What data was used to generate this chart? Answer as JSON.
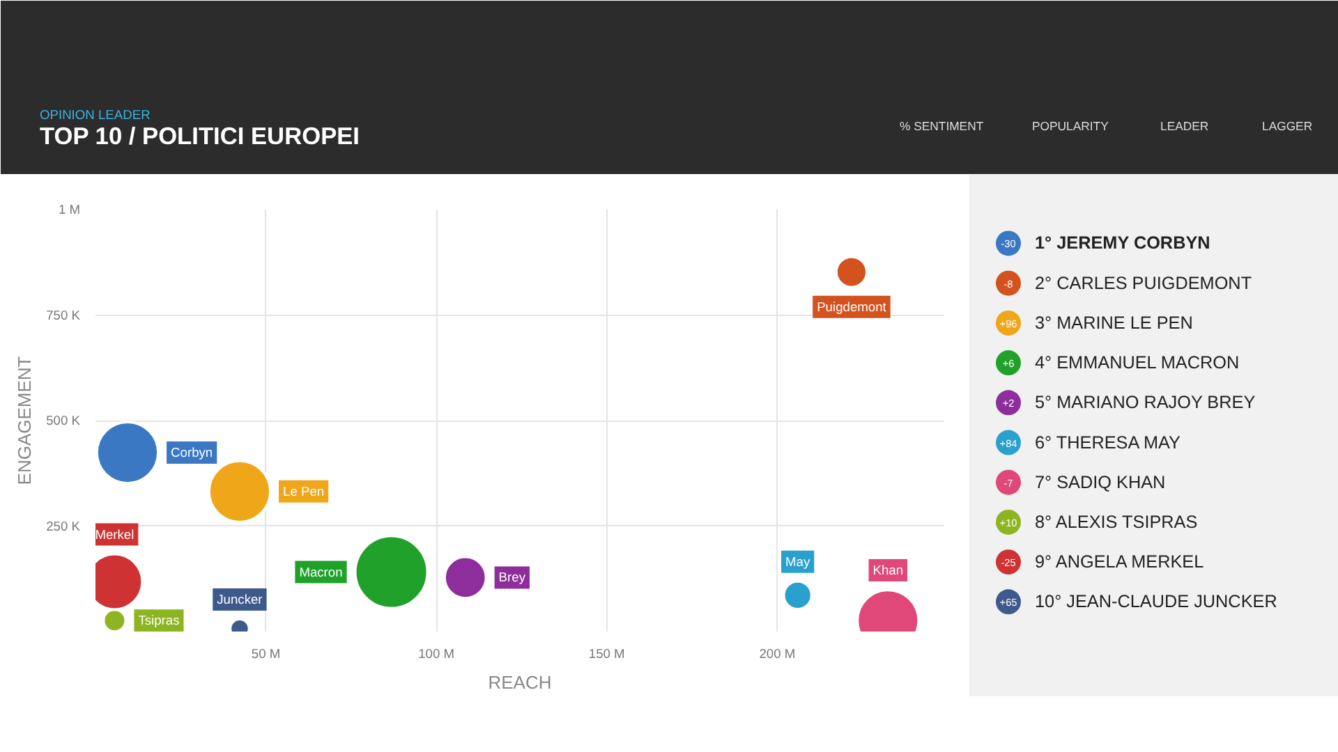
{
  "chart_data": {
    "type": "bubble",
    "title": "TOP 10 / POLITICI EUROPEI",
    "subtitle": "OPINION LEADER",
    "xlabel": "REACH",
    "ylabel": "ENGAGEMENT",
    "xlim": [
      0,
      249
    ],
    "xticks": [
      {
        "value": 50,
        "label": "50 M"
      },
      {
        "value": 100,
        "label": "100 M"
      },
      {
        "value": 150,
        "label": "150 M"
      },
      {
        "value": 200,
        "label": "200 M"
      }
    ],
    "ylim": [
      0,
      1000000
    ],
    "yticks": [
      {
        "value": 250000,
        "label": "250 K"
      },
      {
        "value": 500000,
        "label": "500 K"
      },
      {
        "value": 750000,
        "label": "750 K"
      },
      {
        "value": 1000000,
        "label": "1 M"
      }
    ],
    "grid": true,
    "series": [
      {
        "name": "Corbyn",
        "color": "#3a78c3",
        "x": [
          9.4
        ],
        "values": [
          424000
        ],
        "sizes": [
          0.72
        ]
      },
      {
        "name": "Puigdemont",
        "color": "#d4521e",
        "x": [
          221.8
        ],
        "values": [
          852000
        ],
        "sizes": [
          0.18
        ]
      },
      {
        "name": "Le Pen",
        "color": "#f0a619",
        "x": [
          42.3
        ],
        "values": [
          332000
        ],
        "sizes": [
          0.72
        ]
      },
      {
        "name": "Macron",
        "color": "#1fa12a",
        "x": [
          86.8
        ],
        "values": [
          141000
        ],
        "sizes": [
          1
        ]
      },
      {
        "name": "Brey",
        "color": "#8e2d9c",
        "x": [
          108.5
        ],
        "values": [
          128000
        ],
        "sizes": [
          0.33
        ]
      },
      {
        "name": "May",
        "color": "#2aa0cf",
        "x": [
          206
        ],
        "values": [
          86000
        ],
        "sizes": [
          0.15
        ]
      },
      {
        "name": "Khan",
        "color": "#e0487a",
        "x": [
          232.5
        ],
        "values": [
          26000
        ],
        "sizes": [
          0.72
        ]
      },
      {
        "name": "Tsipras",
        "color": "#8cb521",
        "x": [
          5.6
        ],
        "values": [
          26000
        ],
        "sizes": [
          0.095
        ]
      },
      {
        "name": "Merkel",
        "color": "#cf3232",
        "x": [
          5.6
        ],
        "values": [
          118000
        ],
        "sizes": [
          0.59
        ]
      },
      {
        "name": "Juncker",
        "color": "#3e5a8c",
        "x": [
          42.3
        ],
        "values": [
          7000
        ],
        "sizes": [
          0.07
        ]
      }
    ],
    "annotations": [
      "% SENTIMENT",
      "POPULARITY",
      "LEADER",
      "LAGGER",
      "-30",
      "1° JEREMY CORBYN",
      "-8",
      "2° CARLES PUIGDEMONT",
      "+96",
      "3° MARINE LE PEN",
      "+6",
      "4° EMMANUEL MACRON",
      "+2",
      "5° MARIANO RAJOY BREY",
      "+84",
      "6° THERESA MAY",
      "-7",
      "7° SADIQ KHAN",
      "+10",
      "8° ALEXIS TSIPRAS",
      "-25",
      "9° ANGELA MERKEL",
      "+65",
      "10° JEAN-CLAUDE JUNCKER"
    ]
  }
}
